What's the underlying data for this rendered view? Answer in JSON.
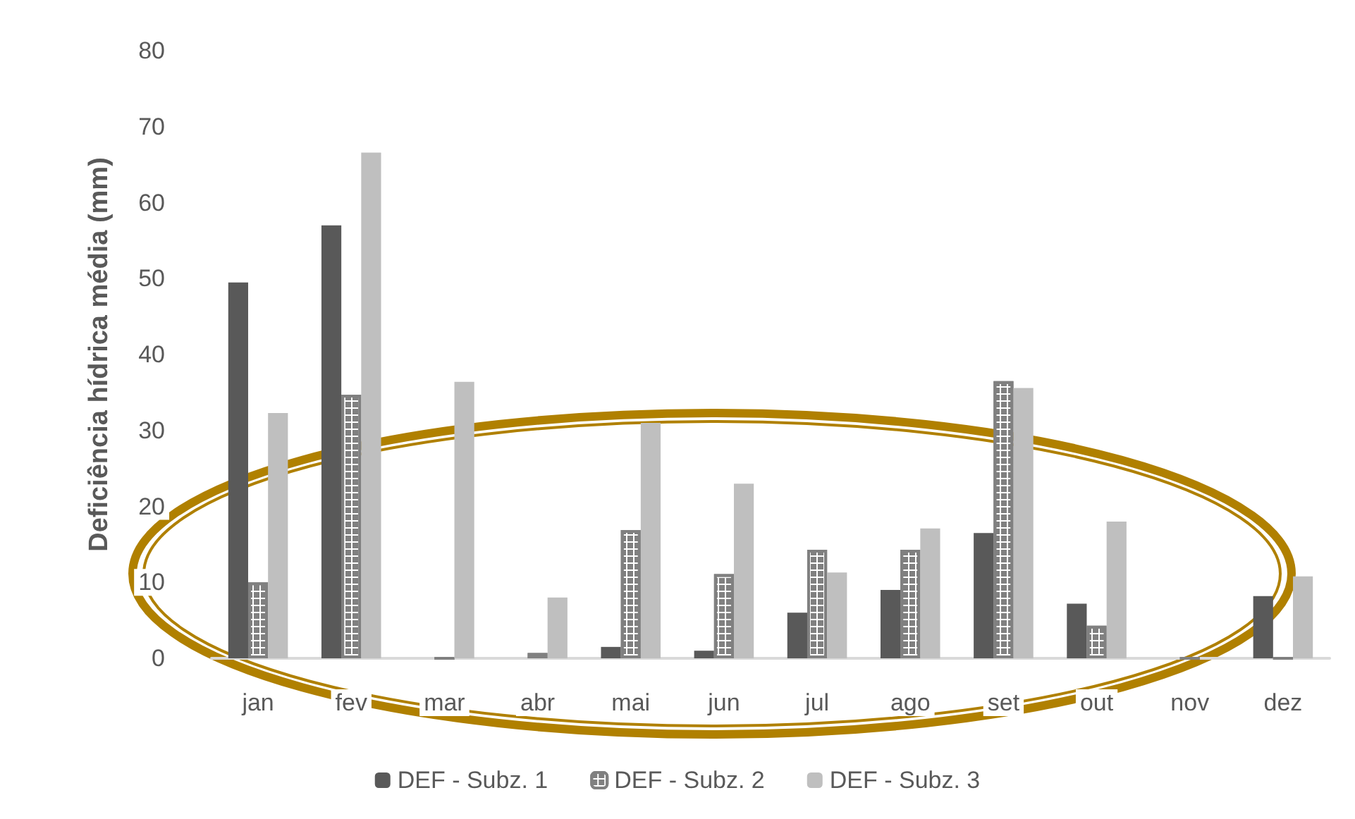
{
  "chart_data": {
    "type": "bar",
    "ylabel": "Deficiência hídrica média (mm)",
    "categories": [
      "jan",
      "fev",
      "mar",
      "abr",
      "mai",
      "jun",
      "jul",
      "ago",
      "set",
      "out",
      "nov",
      "dez"
    ],
    "series": [
      {
        "name": "DEF - Subz. 1",
        "color": "#595959",
        "values": [
          49.5,
          57,
          0,
          0,
          1.5,
          1,
          6,
          9,
          16.5,
          7.2,
          0,
          8.2
        ]
      },
      {
        "name": "DEF - Subz. 2",
        "color": "#808080",
        "values": [
          10,
          34.7,
          0,
          0.7,
          16.9,
          11.1,
          14.3,
          14.3,
          36.5,
          4.3,
          0,
          0
        ]
      },
      {
        "name": "DEF - Subz. 3",
        "color": "#bfbfbf",
        "values": [
          32.3,
          66.6,
          36.4,
          8,
          31,
          23,
          11.3,
          17.1,
          35.6,
          18,
          0,
          10.8
        ]
      }
    ],
    "ylim": [
      0,
      80
    ],
    "yticks": [
      0,
      10,
      20,
      30,
      40,
      50,
      60,
      70,
      80
    ],
    "grid": false,
    "legend": "bottom"
  }
}
